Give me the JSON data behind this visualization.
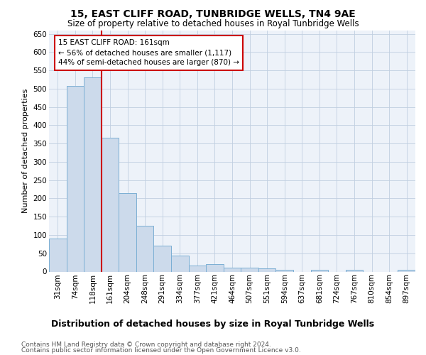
{
  "title": "15, EAST CLIFF ROAD, TUNBRIDGE WELLS, TN4 9AE",
  "subtitle": "Size of property relative to detached houses in Royal Tunbridge Wells",
  "xlabel": "Distribution of detached houses by size in Royal Tunbridge Wells",
  "ylabel": "Number of detached properties",
  "footer1": "Contains HM Land Registry data © Crown copyright and database right 2024.",
  "footer2": "Contains public sector information licensed under the Open Government Licence v3.0.",
  "categories": [
    "31sqm",
    "74sqm",
    "118sqm",
    "161sqm",
    "204sqm",
    "248sqm",
    "291sqm",
    "334sqm",
    "377sqm",
    "421sqm",
    "464sqm",
    "507sqm",
    "551sqm",
    "594sqm",
    "637sqm",
    "681sqm",
    "724sqm",
    "767sqm",
    "810sqm",
    "854sqm",
    "897sqm"
  ],
  "values": [
    90,
    507,
    530,
    365,
    215,
    126,
    70,
    43,
    16,
    20,
    11,
    11,
    8,
    5,
    0,
    5,
    0,
    4,
    0,
    0,
    4
  ],
  "bar_color": "#ccdaeb",
  "bar_edge_color": "#7bafd4",
  "vline_index": 3,
  "annotation_text": "15 EAST CLIFF ROAD: 161sqm\n← 56% of detached houses are smaller (1,117)\n44% of semi-detached houses are larger (870) →",
  "annotation_box_color": "white",
  "annotation_box_edge_color": "#cc0000",
  "vline_color": "#cc0000",
  "ylim": [
    0,
    660
  ],
  "yticks": [
    0,
    50,
    100,
    150,
    200,
    250,
    300,
    350,
    400,
    450,
    500,
    550,
    600,
    650
  ],
  "grid_color": "#c0cfe0",
  "bg_color": "#edf2f9",
  "title_fontsize": 10,
  "subtitle_fontsize": 8.5,
  "xlabel_fontsize": 9,
  "ylabel_fontsize": 8,
  "tick_fontsize": 7.5,
  "annot_fontsize": 7.5,
  "footer_fontsize": 6.5
}
